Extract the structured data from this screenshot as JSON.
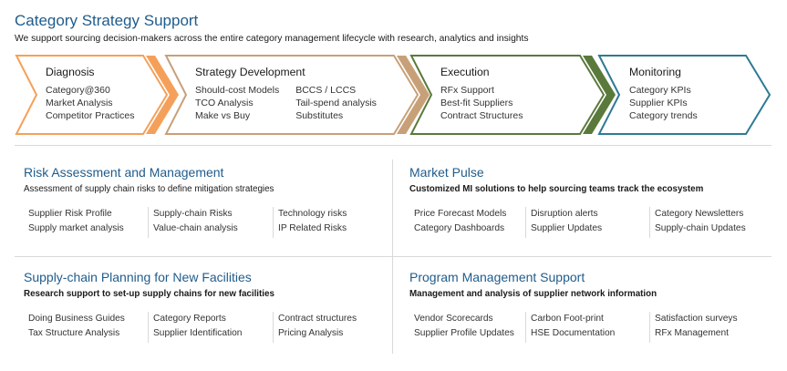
{
  "header": {
    "title": "Category Strategy Support",
    "subtitle": "We support sourcing decision-makers across the entire category management lifecycle with research, analytics and insights"
  },
  "colors": {
    "diagnosis": "#f5a05a",
    "strategy": "#c8a078",
    "execution": "#5a7a3c",
    "monitoring": "#2e7a94",
    "title_blue": "#1f5c8c"
  },
  "stages": [
    {
      "title": "Diagnosis",
      "columns": [
        [
          "Category@360",
          "Market Analysis",
          "Competitor Practices"
        ]
      ]
    },
    {
      "title": "Strategy Development",
      "columns": [
        [
          "Should-cost Models",
          "TCO Analysis",
          "Make vs Buy"
        ],
        [
          "BCCS / LCCS",
          "Tail-spend analysis",
          "Substitutes"
        ]
      ]
    },
    {
      "title": "Execution",
      "columns": [
        [
          "RFx Support",
          "Best-fit Suppliers",
          "Contract Structures"
        ]
      ]
    },
    {
      "title": "Monitoring",
      "columns": [
        [
          "Category KPIs",
          "Supplier KPIs",
          "Category trends"
        ]
      ]
    }
  ],
  "panels": [
    {
      "title": "Risk Assessment and Management",
      "subtitle": "Assessment of supply chain risks to define mitigation strategies",
      "columns": [
        [
          "Supplier Risk Profile",
          "Supply market analysis"
        ],
        [
          "Supply-chain Risks",
          "Value-chain analysis"
        ],
        [
          "Technology risks",
          "IP Related Risks"
        ]
      ]
    },
    {
      "title": "Market Pulse",
      "subtitle": "Customized MI solutions to help sourcing teams track the ecosystem",
      "columns": [
        [
          "Price Forecast Models",
          "Category Dashboards"
        ],
        [
          "Disruption alerts",
          "Supplier Updates"
        ],
        [
          "Category Newsletters",
          "Supply-chain Updates"
        ]
      ]
    },
    {
      "title": "Supply-chain Planning for New Facilities",
      "subtitle": "Research support to set-up supply chains for new facilities",
      "columns": [
        [
          "Doing Business Guides",
          "Tax Structure Analysis"
        ],
        [
          "Category Reports",
          "Supplier Identification"
        ],
        [
          "Contract structures",
          "Pricing Analysis"
        ]
      ]
    },
    {
      "title": "Program Management Support",
      "subtitle": "Management and analysis of supplier network information",
      "columns": [
        [
          "Vendor Scorecards",
          "Supplier Profile Updates"
        ],
        [
          "Carbon Foot-print",
          "HSE Documentation"
        ],
        [
          "Satisfaction surveys",
          "RFx Management"
        ]
      ]
    }
  ]
}
